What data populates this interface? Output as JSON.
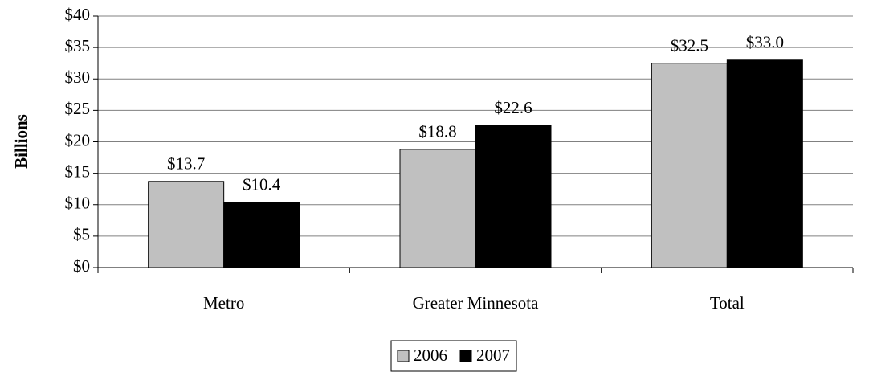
{
  "chart_data": {
    "type": "bar",
    "y_label": "Billions",
    "categories": [
      "Metro",
      "Greater Minnesota",
      "Total"
    ],
    "series": [
      {
        "name": "2006",
        "color": "#c0c0c0",
        "values": [
          13.7,
          18.8,
          32.5
        ],
        "value_labels": [
          "$13.7",
          "$18.8",
          "$32.5"
        ]
      },
      {
        "name": "2007",
        "color": "#000000",
        "values": [
          10.4,
          22.6,
          33.0
        ],
        "value_labels": [
          "$10.4",
          "$22.6",
          "$33.0"
        ]
      }
    ],
    "ylim": [
      0,
      40
    ],
    "yticks": [
      {
        "value": 0,
        "label": "$0"
      },
      {
        "value": 5,
        "label": "$5"
      },
      {
        "value": 10,
        "label": "$10"
      },
      {
        "value": 15,
        "label": "$15"
      },
      {
        "value": 20,
        "label": "$20"
      },
      {
        "value": 25,
        "label": "$25"
      },
      {
        "value": 30,
        "label": "$30"
      },
      {
        "value": 35,
        "label": "$35"
      },
      {
        "value": 40,
        "label": "$40"
      }
    ],
    "grid": true,
    "legend": "bottom"
  }
}
